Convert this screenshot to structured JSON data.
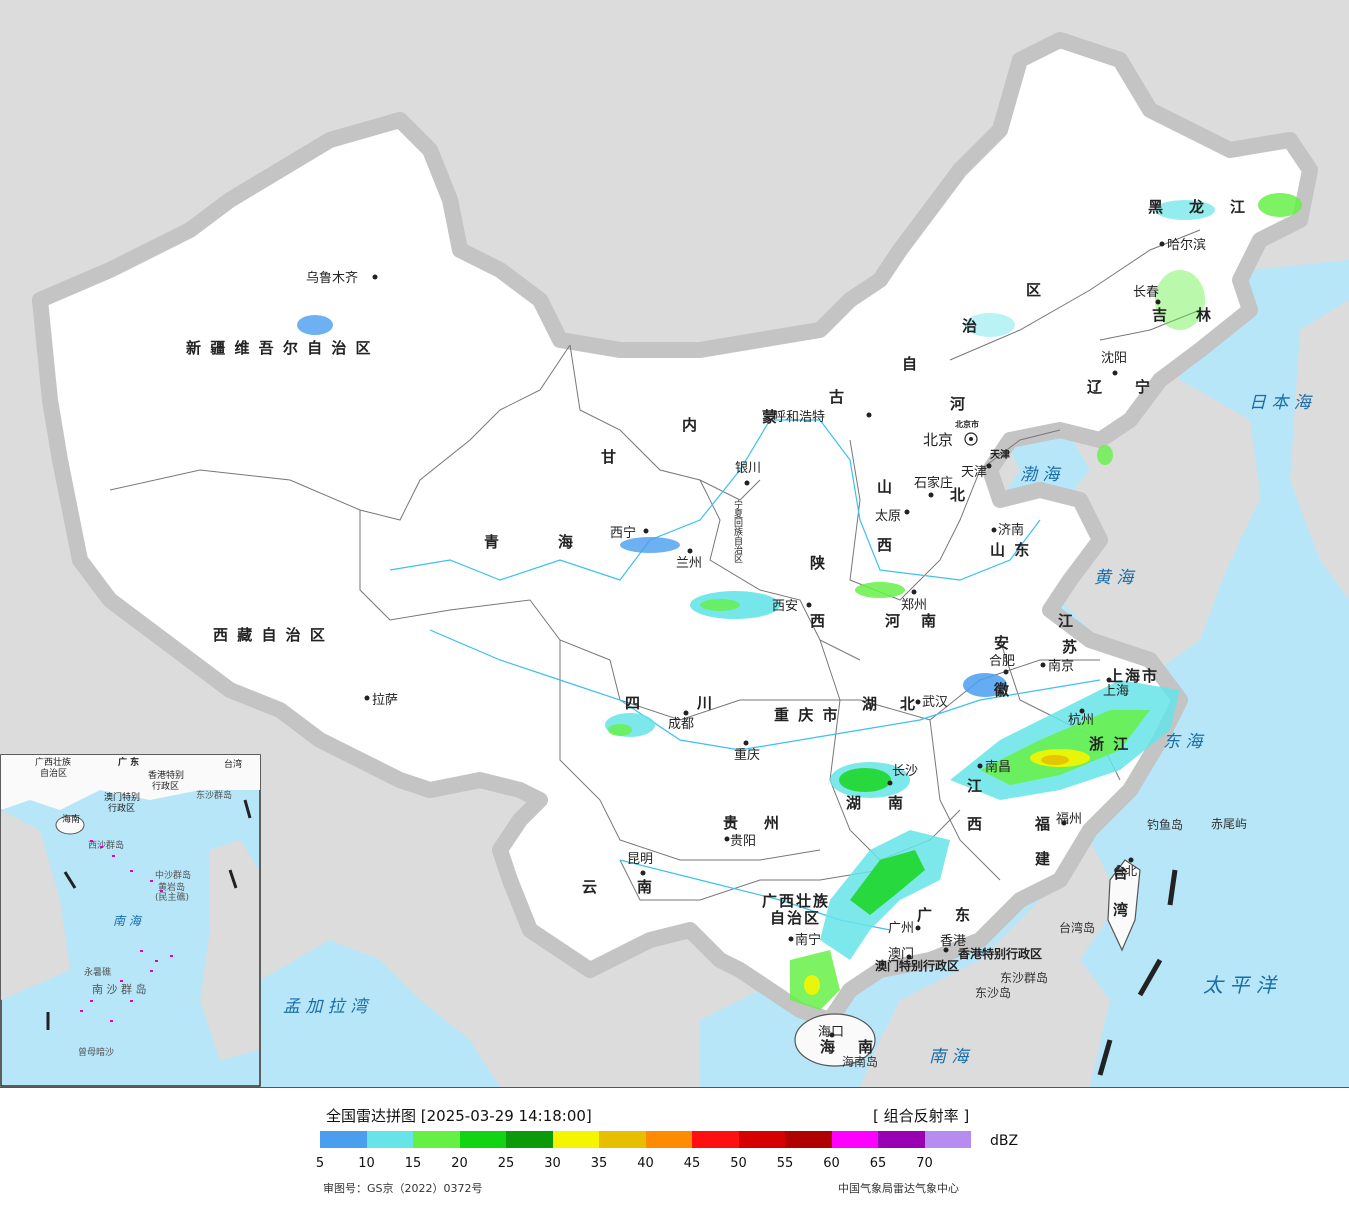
{
  "header": {
    "title": "全国雷达拼图 [2025-03-29 14:18:00]",
    "product": "[ 组合反射率 ]",
    "unit": "dBZ"
  },
  "legend": {
    "colors": [
      "#4a9ef0",
      "#66e4e8",
      "#66f046",
      "#12d412",
      "#0a9a0a",
      "#f5f500",
      "#e6c000",
      "#ff8c00",
      "#ff1010",
      "#d60000",
      "#b00000",
      "#ff00ff",
      "#9900b4",
      "#b68cf0"
    ],
    "ticks": [
      "5",
      "10",
      "15",
      "20",
      "25",
      "30",
      "35",
      "40",
      "45",
      "50",
      "55",
      "60",
      "65",
      "70"
    ]
  },
  "footer": {
    "approval": "审图号：GS京（2022）0372号",
    "agency": "中国气象局雷达气象中心"
  },
  "map": {
    "provinces": {
      "xinjiang": "新 疆 维 吾 尔 自 治 区",
      "tibet": "西 藏 自 治 区",
      "qinghai_1": "青",
      "qinghai_2": "海",
      "gansu": "甘",
      "sichuan_1": "四",
      "sichuan_2": "川",
      "yunnan_1": "云",
      "yunnan_2": "南",
      "guizhou_1": "贵",
      "guizhou_2": "州",
      "chongqing": "重 庆 市",
      "guangxi_1": "广西壮族",
      "guangxi_2": "自治区",
      "guangdong_1": "广",
      "guangdong_2": "东",
      "hainan_1": "海",
      "hainan_2": "南",
      "hunan_1": "湖",
      "hunan_2": "南",
      "hubei_1": "湖",
      "hubei_2": "北",
      "jiangxi_1": "江",
      "jiangxi_2": "西",
      "fujian_1": "福",
      "fujian_2": "建",
      "zhejiang": "浙 江",
      "shanghai": "上海市",
      "jiangsu_1": "江",
      "jiangsu_2": "苏",
      "anhui_1": "安",
      "anhui_2": "徽",
      "henan_1": "河",
      "henan_2": "南",
      "shandong": "山 东",
      "shanxi_1": "山",
      "shanxi_2": "西",
      "shaanxi_1": "陕",
      "shaanxi_2": "西",
      "hebei_1": "河",
      "hebei_2": "北",
      "ningxia": "宁夏回族自治区",
      "nm_1": "内",
      "nm_2": "蒙",
      "nm_3": "古",
      "nm_4": "自",
      "nm_5": "治",
      "nm_6": "区",
      "heilongjiang_1": "黑",
      "heilongjiang_2": "龙",
      "heilongjiang_3": "江",
      "jilin_1": "吉",
      "jilin_2": "林",
      "liaoning_1": "辽",
      "liaoning_2": "宁",
      "taiwan_1": "台",
      "taiwan_2": "湾",
      "beijing_city": "北京市",
      "tianjin_city": "天津",
      "hk_sar": "香港特别行政区",
      "macao_sar": "澳门特别行政区"
    },
    "cities": {
      "urumqi": "乌鲁木齐",
      "lhasa": "拉萨",
      "xining": "西宁",
      "lanzhou": "兰州",
      "yinchuan": "银川",
      "hohhot": "呼和浩特",
      "beijing": "北京",
      "tianjin": "天津",
      "shijiazhuang": "石家庄",
      "taiyuan": "太原",
      "jinan": "济南",
      "zhengzhou": "郑州",
      "xian": "西安",
      "chengdu": "成都",
      "chongqing": "重庆",
      "guiyang": "贵阳",
      "kunming": "昆明",
      "nanning": "南宁",
      "guangzhou": "广州",
      "macao": "澳门",
      "hongkong": "香港",
      "haikou": "海口",
      "changsha": "长沙",
      "wuhan": "武汉",
      "nanchang": "南昌",
      "hefei": "合肥",
      "nanjing": "南京",
      "shanghai": "上海",
      "hangzhou": "杭州",
      "fuzhou": "福州",
      "taipei": "台北",
      "harbin": "哈尔滨",
      "changchun": "长春",
      "shenyang": "沈阳"
    },
    "islands": {
      "diaoyu": "钓鱼岛",
      "chiwei": "赤尾屿",
      "taiwan_island": "台湾岛",
      "dongsha_islands": "东沙群岛",
      "dongsha_island": "东沙岛",
      "hainan_island": "海南岛"
    },
    "seas": {
      "bohai": "渤 海",
      "huanghai": "黄 海",
      "donghai": "东 海",
      "nanhai": "南 海",
      "japan_sea": "日 本 海",
      "pacific": "太 平 洋",
      "bengal": "孟 加 拉 湾"
    },
    "inset": {
      "guangdong": "广 东",
      "taiwan": "台湾",
      "hk": "香港特别",
      "hk2": "行政区",
      "macao": "澳门特别",
      "macao2": "行政区",
      "dongsha": "东沙群岛",
      "xisha": "西沙群岛",
      "zhongsha": "中沙群岛",
      "huangyan_1": "黄岩岛",
      "huangyan_2": "(民主礁)",
      "nansha": "南 沙 群 岛",
      "yongshu": "永暑礁",
      "zengmu": "曾母暗沙",
      "sea": "南 海",
      "guangxi": "广西壮族",
      "guangxi2": "自治区",
      "hainan": "海南"
    }
  }
}
